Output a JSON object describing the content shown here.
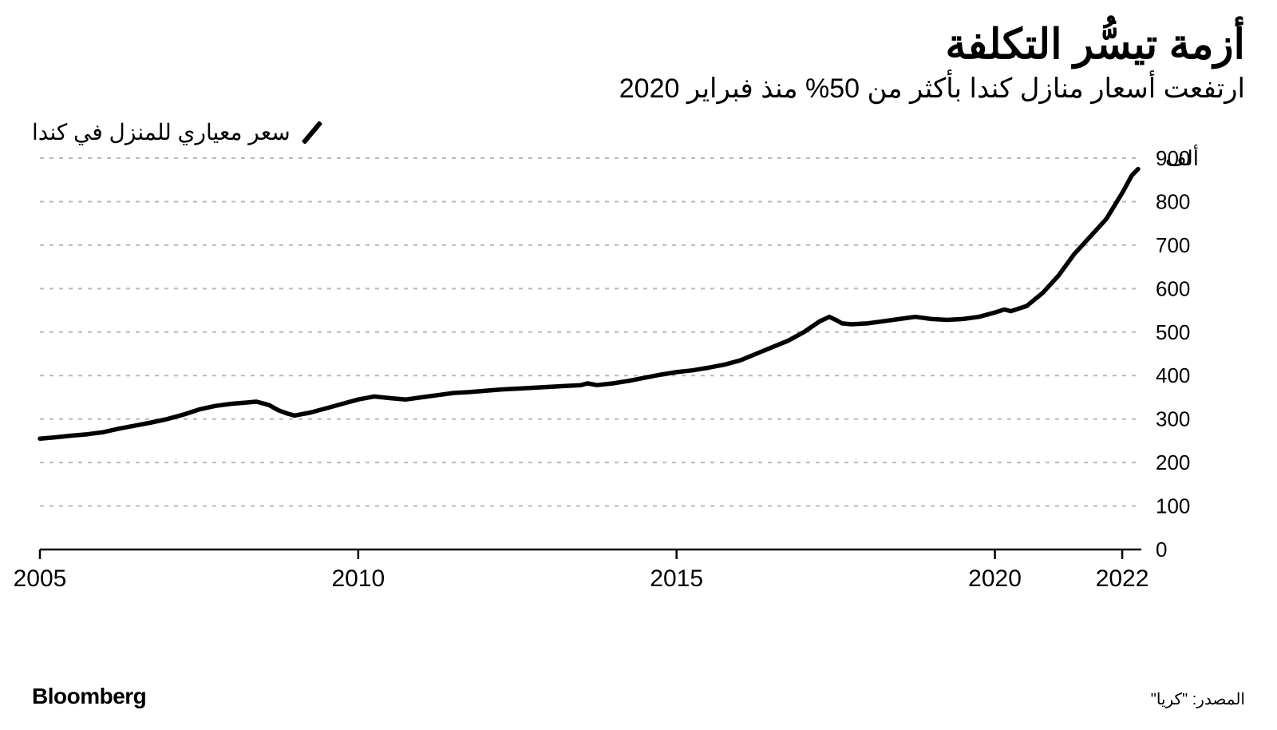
{
  "title": "أزمة تيسُّر التكلفة",
  "subtitle": "ارتفعت أسعار منازل كندا بأكثر من 50% منذ فبراير 2020",
  "legend_label": "سعر معياري للمنزل في كندا",
  "brand": "Bloomberg",
  "source": "المصدر: \"كريا\"",
  "chart": {
    "type": "line",
    "background_color": "#ffffff",
    "grid_color": "#b9b9b9",
    "axis_color": "#000000",
    "line_color": "#000000",
    "line_width": 5.5,
    "y_unit_label": "ألف",
    "y_unit_at": 900,
    "xlim": [
      2005,
      2022.3
    ],
    "ylim": [
      0,
      900
    ],
    "yticks": [
      0,
      100,
      200,
      300,
      400,
      500,
      600,
      700,
      800,
      900
    ],
    "xticks": [
      2005,
      2010,
      2015,
      2020,
      2022
    ],
    "xtick_labels": [
      "2005",
      "2010",
      "2015",
      "2020",
      "2022"
    ],
    "label_fontsize": 26,
    "series": [
      {
        "name": "benchmark_price",
        "points": [
          [
            2005.0,
            255
          ],
          [
            2005.25,
            258
          ],
          [
            2005.5,
            262
          ],
          [
            2005.75,
            265
          ],
          [
            2006.0,
            270
          ],
          [
            2006.25,
            278
          ],
          [
            2006.5,
            285
          ],
          [
            2006.75,
            292
          ],
          [
            2007.0,
            300
          ],
          [
            2007.25,
            310
          ],
          [
            2007.5,
            322
          ],
          [
            2007.75,
            330
          ],
          [
            2008.0,
            335
          ],
          [
            2008.25,
            338
          ],
          [
            2008.4,
            340
          ],
          [
            2008.6,
            332
          ],
          [
            2008.75,
            320
          ],
          [
            2008.9,
            312
          ],
          [
            2009.0,
            308
          ],
          [
            2009.25,
            315
          ],
          [
            2009.5,
            325
          ],
          [
            2009.75,
            335
          ],
          [
            2010.0,
            345
          ],
          [
            2010.25,
            352
          ],
          [
            2010.5,
            348
          ],
          [
            2010.75,
            345
          ],
          [
            2011.0,
            350
          ],
          [
            2011.25,
            355
          ],
          [
            2011.5,
            360
          ],
          [
            2011.75,
            362
          ],
          [
            2012.0,
            365
          ],
          [
            2012.25,
            368
          ],
          [
            2012.5,
            370
          ],
          [
            2012.75,
            372
          ],
          [
            2013.0,
            374
          ],
          [
            2013.25,
            376
          ],
          [
            2013.5,
            378
          ],
          [
            2013.6,
            382
          ],
          [
            2013.75,
            378
          ],
          [
            2014.0,
            382
          ],
          [
            2014.25,
            388
          ],
          [
            2014.5,
            395
          ],
          [
            2014.75,
            402
          ],
          [
            2015.0,
            408
          ],
          [
            2015.25,
            412
          ],
          [
            2015.5,
            418
          ],
          [
            2015.75,
            425
          ],
          [
            2016.0,
            435
          ],
          [
            2016.25,
            450
          ],
          [
            2016.5,
            465
          ],
          [
            2016.75,
            480
          ],
          [
            2017.0,
            500
          ],
          [
            2017.25,
            525
          ],
          [
            2017.4,
            535
          ],
          [
            2017.5,
            528
          ],
          [
            2017.6,
            520
          ],
          [
            2017.75,
            518
          ],
          [
            2018.0,
            520
          ],
          [
            2018.25,
            525
          ],
          [
            2018.5,
            530
          ],
          [
            2018.75,
            535
          ],
          [
            2019.0,
            530
          ],
          [
            2019.25,
            528
          ],
          [
            2019.5,
            530
          ],
          [
            2019.75,
            535
          ],
          [
            2020.0,
            545
          ],
          [
            2020.15,
            552
          ],
          [
            2020.25,
            548
          ],
          [
            2020.5,
            560
          ],
          [
            2020.75,
            590
          ],
          [
            2021.0,
            630
          ],
          [
            2021.25,
            680
          ],
          [
            2021.5,
            720
          ],
          [
            2021.75,
            760
          ],
          [
            2022.0,
            820
          ],
          [
            2022.15,
            860
          ],
          [
            2022.25,
            875
          ]
        ]
      }
    ]
  }
}
